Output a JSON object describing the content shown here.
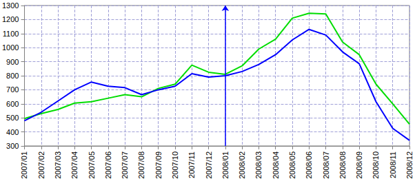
{
  "chart_data": {
    "type": "line",
    "categories": [
      "2007/01",
      "2007/02",
      "2007/03",
      "2007/04",
      "2007/05",
      "2007/06",
      "2007/07",
      "2007/08",
      "2007/09",
      "2007/10",
      "2007/11",
      "2007/12",
      "2008/01",
      "2008/02",
      "2008/03",
      "2008/04",
      "2008/05",
      "2008/06",
      "2008/07",
      "2008/08",
      "2008/09",
      "2008/10",
      "2008/11",
      "2008/12"
    ],
    "series": [
      {
        "color": "#00dd00",
        "values": [
          495,
          530,
          560,
          605,
          615,
          640,
          665,
          650,
          710,
          740,
          875,
          825,
          810,
          870,
          990,
          1060,
          1210,
          1245,
          1240,
          1040,
          950,
          740,
          600,
          455
        ]
      },
      {
        "color": "#0000ff",
        "values": [
          480,
          540,
          620,
          700,
          755,
          725,
          715,
          665,
          700,
          725,
          815,
          790,
          800,
          830,
          880,
          950,
          1055,
          1130,
          1090,
          970,
          885,
          615,
          425,
          340
        ]
      }
    ],
    "ylim": [
      300,
      1300
    ],
    "yticks": [
      300,
      400,
      500,
      600,
      700,
      800,
      900,
      1000,
      1100,
      1200,
      1300
    ],
    "grid": true,
    "annotations": [
      {
        "x": "2008/01",
        "marker": "arrow",
        "color": "#0000ff"
      }
    ]
  }
}
